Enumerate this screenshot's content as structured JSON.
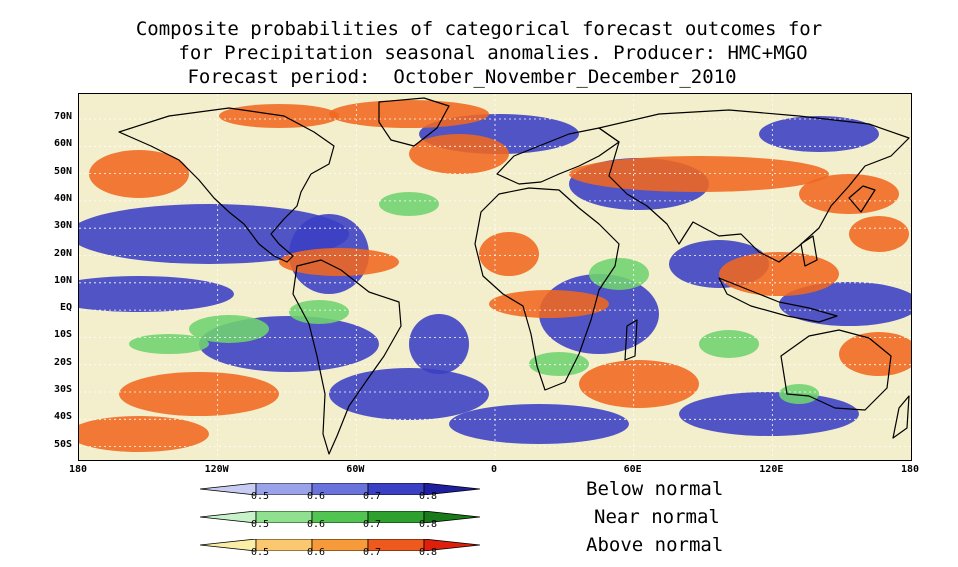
{
  "title": {
    "line1": "Composite probabilities of categorical forecast outcomes for",
    "line2": "for Precipitation seasonal anomalies. Producer: HMC+MGO",
    "line3": "Forecast period:  October_November_December_2010"
  },
  "axes": {
    "lat_labels": [
      "70N",
      "60N",
      "50N",
      "40N",
      "30N",
      "20N",
      "10N",
      "EQ",
      "10S",
      "20S",
      "30S",
      "40S",
      "50S"
    ],
    "lon_labels": [
      "180",
      "120W",
      "60W",
      "0",
      "60E",
      "120E",
      "180"
    ]
  },
  "legend": {
    "rows": [
      {
        "label": "Below normal",
        "ticks": [
          "0.5",
          "0.6",
          "0.7",
          "0.8"
        ],
        "colors": [
          "#c8ccf2",
          "#9aa2ea",
          "#6a72dc",
          "#3a40c4",
          "#1e20a0"
        ]
      },
      {
        "label": "Near normal",
        "ticks": [
          "0.5",
          "0.6",
          "0.7",
          "0.8"
        ],
        "colors": [
          "#c8f2c8",
          "#8fe08f",
          "#52c452",
          "#2ea02e",
          "#187a18"
        ]
      },
      {
        "label": "Above normal",
        "ticks": [
          "0.5",
          "0.6",
          "0.7",
          "0.8"
        ],
        "colors": [
          "#fbeea6",
          "#fbc870",
          "#f69a3a",
          "#ee5a1e",
          "#dd1f0c"
        ]
      }
    ]
  },
  "colors": {
    "below": "#3a3fc4",
    "near": "#6fd36f",
    "above": "#f06820",
    "pale": "#f6f0c8"
  }
}
